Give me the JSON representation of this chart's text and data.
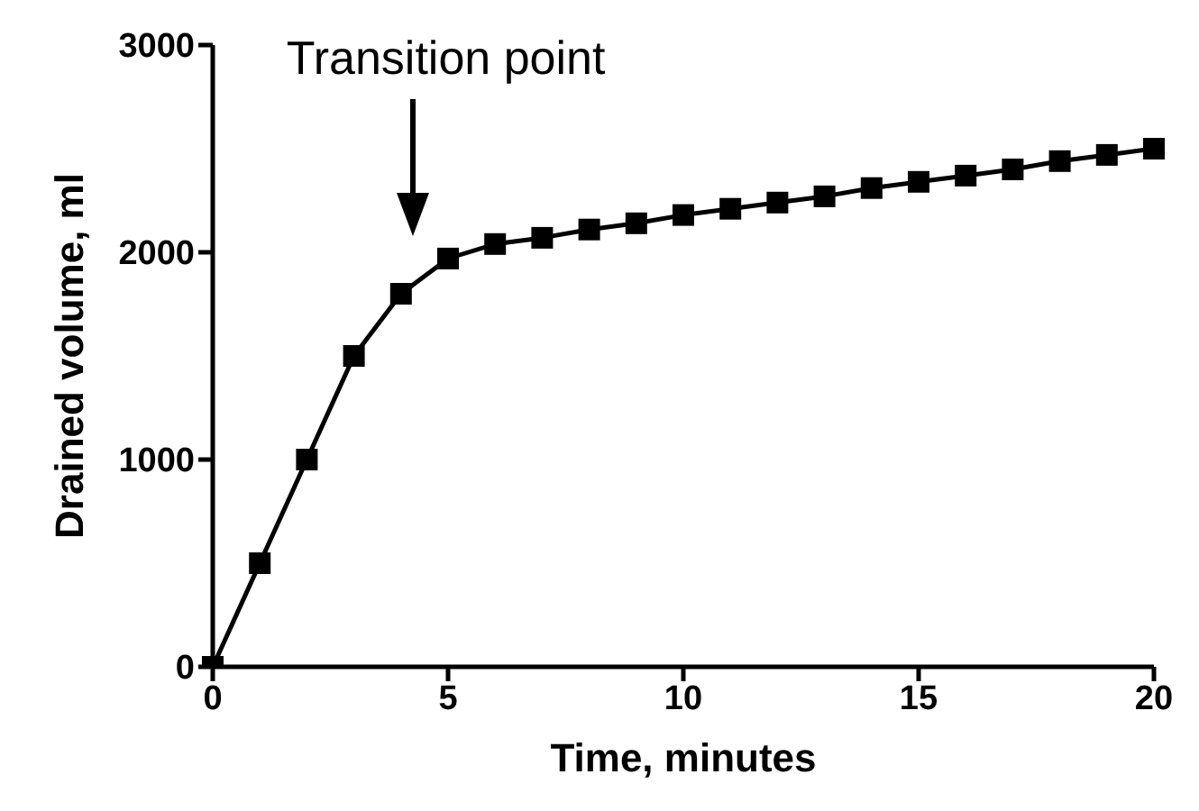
{
  "chart_data": {
    "type": "line",
    "xlabel": "Time, minutes",
    "ylabel": "Drained volume, ml",
    "x": [
      0,
      1,
      2,
      3,
      4,
      5,
      6,
      7,
      8,
      9,
      10,
      11,
      12,
      13,
      14,
      15,
      16,
      17,
      18,
      19,
      20
    ],
    "series": [
      {
        "color": "#000000",
        "values": [
          0,
          500,
          1000,
          1500,
          1800,
          1970,
          2040,
          2070,
          2110,
          2140,
          2180,
          2210,
          2240,
          2270,
          2310,
          2340,
          2370,
          2400,
          2440,
          2470,
          2500
        ]
      }
    ],
    "xlim": [
      0,
      20
    ],
    "xticks": [
      0,
      5,
      10,
      15,
      20
    ],
    "ylim": [
      0,
      3000
    ],
    "yticks": [
      0,
      1000,
      2000,
      3000
    ],
    "grid": false,
    "legend": false,
    "marker": "square",
    "line_style": "solid",
    "annotations": [
      "Transition point"
    ]
  }
}
